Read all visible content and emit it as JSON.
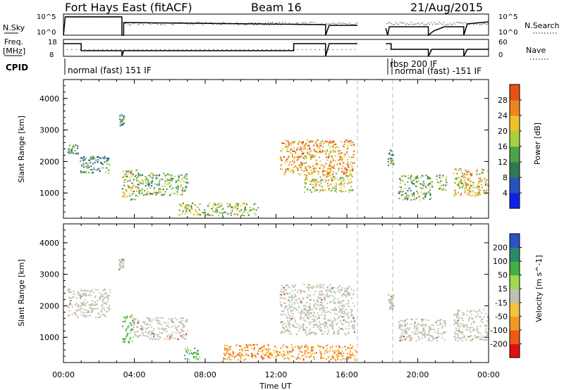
{
  "header": {
    "station": "Fort Hays East (fitACF)",
    "beam": "Beam 16",
    "date": "21/Aug/2015"
  },
  "noise_panel": {
    "left_label": "N.Sky",
    "right_label": "N.Search",
    "left_ticks": [
      "10^5",
      "10^0"
    ],
    "right_ticks": [
      "10^5",
      "10^0"
    ]
  },
  "freq_panel": {
    "left_label_top": "Freq.",
    "left_label_bottom": "[MHz]",
    "right_label": "Nave",
    "left_ticks": [
      "18",
      "8"
    ],
    "right_ticks": [
      "60",
      "0"
    ]
  },
  "cpid": {
    "label": "CPID",
    "segments": [
      "normal (fast) 151 IF",
      "rbsp 200 IF",
      "normal (fast) -151 IF"
    ]
  },
  "time_axis": {
    "label": "Time UT",
    "ticks": [
      "00:00",
      "04:00",
      "08:00",
      "12:00",
      "16:00",
      "20:00",
      "00:00"
    ]
  },
  "colors": {
    "power_scale": [
      "#1020e8",
      "#2850c0",
      "#2f7a55",
      "#4aa24a",
      "#a9cf3a",
      "#f0c22a",
      "#ef8420",
      "#e85018",
      "#d81810"
    ],
    "velocity_scale": [
      "#e01010",
      "#ef5a18",
      "#f29a20",
      "#f3c43a",
      "#c0c0b0",
      "#a0d850",
      "#40b040",
      "#2a8a6a",
      "#3050c8"
    ],
    "ground_scatter": "#c0c0b0"
  },
  "chart_data": [
    {
      "type": "heatmap",
      "name": "power-panel",
      "ylabel": "Slant Range [km]",
      "xlabel": "",
      "yticks": [
        1000,
        2000,
        3000,
        4000
      ],
      "ylim": [
        200,
        4600
      ],
      "xlim_hours": [
        0,
        24
      ],
      "colorbar": {
        "label": "Power [dB]",
        "ticks": [
          "4",
          "8",
          "12",
          "16",
          "20",
          "24",
          "28"
        ],
        "range": [
          0,
          32
        ]
      },
      "regions": [
        {
          "t0": 0.2,
          "t1": 0.8,
          "r0": 2250,
          "r1": 2550,
          "level": 0.35
        },
        {
          "t0": 0.9,
          "t1": 2.6,
          "r0": 1650,
          "r1": 2200,
          "level": 0.3
        },
        {
          "t0": 3.1,
          "t1": 3.4,
          "r0": 3150,
          "r1": 3500,
          "level": 0.3
        },
        {
          "t0": 3.3,
          "t1": 4.2,
          "r0": 800,
          "r1": 1750,
          "level": 0.5
        },
        {
          "t0": 4.2,
          "t1": 7.0,
          "r0": 950,
          "r1": 1650,
          "level": 0.4
        },
        {
          "t0": 6.5,
          "t1": 11.0,
          "r0": 300,
          "r1": 700,
          "level": 0.45
        },
        {
          "t0": 12.2,
          "t1": 16.4,
          "r0": 1600,
          "r1": 2700,
          "level": 0.7
        },
        {
          "t0": 13.5,
          "t1": 16.3,
          "r0": 1050,
          "r1": 1600,
          "level": 0.55
        },
        {
          "t0": 18.3,
          "t1": 18.6,
          "r0": 1900,
          "r1": 2400,
          "level": 0.4
        },
        {
          "t0": 18.9,
          "t1": 20.8,
          "r0": 800,
          "r1": 1600,
          "level": 0.4
        },
        {
          "t0": 21.0,
          "t1": 21.6,
          "r0": 1100,
          "r1": 1600,
          "level": 0.45
        },
        {
          "t0": 22.0,
          "t1": 24.0,
          "r0": 900,
          "r1": 1800,
          "level": 0.6
        }
      ]
    },
    {
      "type": "heatmap",
      "name": "velocity-panel",
      "ylabel": "Slant Range [km]",
      "xlabel": "Time UT",
      "yticks": [
        1000,
        2000,
        3000,
        4000
      ],
      "ylim": [
        200,
        4600
      ],
      "xlim_hours": [
        0,
        24
      ],
      "colorbar": {
        "label": "Velocity [m s^-1]",
        "ticks": [
          "200",
          "100",
          "50",
          "15",
          "-15",
          "-50",
          "-100",
          "-200"
        ],
        "range": [
          -250,
          250
        ]
      },
      "regions": [
        {
          "t0": 0.2,
          "t1": 2.6,
          "r0": 1650,
          "r1": 2550,
          "v": "ground"
        },
        {
          "t0": 3.1,
          "t1": 3.4,
          "r0": 3150,
          "r1": 3500,
          "v": "ground"
        },
        {
          "t0": 3.3,
          "t1": 3.9,
          "r0": 850,
          "r1": 1750,
          "v": 70
        },
        {
          "t0": 3.9,
          "t1": 7.0,
          "r0": 950,
          "r1": 1650,
          "v": "ground"
        },
        {
          "t0": 6.8,
          "t1": 7.7,
          "r0": 300,
          "r1": 700,
          "v": 50
        },
        {
          "t0": 9.0,
          "t1": 16.5,
          "r0": 300,
          "r1": 800,
          "v": -40
        },
        {
          "t0": 12.2,
          "t1": 16.4,
          "r0": 1100,
          "r1": 2700,
          "v": "ground"
        },
        {
          "t0": 18.3,
          "t1": 18.6,
          "r0": 1900,
          "r1": 2400,
          "v": "ground"
        },
        {
          "t0": 18.9,
          "t1": 21.6,
          "r0": 900,
          "r1": 1600,
          "v": "ground"
        },
        {
          "t0": 22.0,
          "t1": 24.0,
          "r0": 900,
          "r1": 1900,
          "v": "ground"
        }
      ]
    }
  ]
}
